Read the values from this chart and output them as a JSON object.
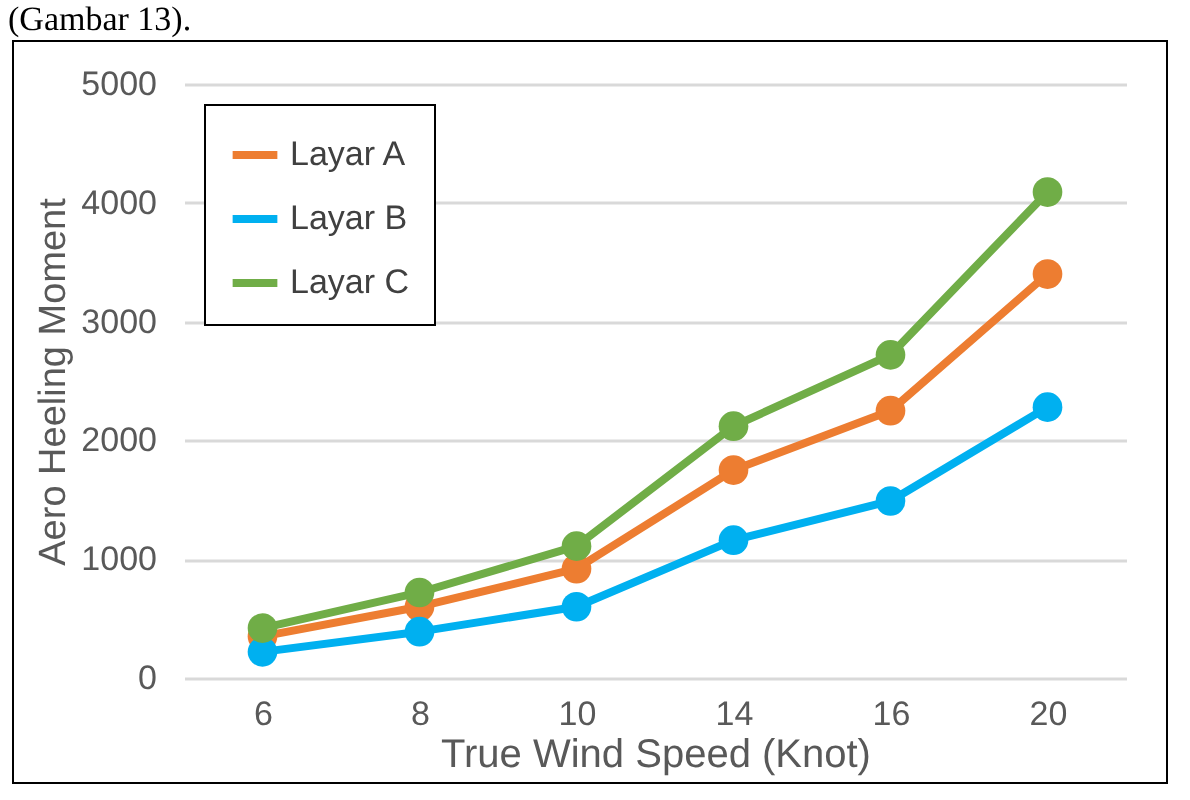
{
  "chart_data": {
    "type": "line",
    "xlabel": "True Wind Speed (Knot)",
    "ylabel": "Aero Heeling Moment",
    "annotations": [
      "(Gambar 13)."
    ],
    "categories": [
      "6",
      "8",
      "10",
      "14",
      "16",
      "20"
    ],
    "series": [
      {
        "name": "Layar A",
        "color": "#ed7d31",
        "values": [
          350,
          600,
          920,
          1750,
          2250,
          3400
        ]
      },
      {
        "name": "Layar B",
        "color": "#00b0f0",
        "values": [
          220,
          390,
          600,
          1160,
          1490,
          2280
        ]
      },
      {
        "name": "Layar C",
        "color": "#70ad47",
        "values": [
          420,
          720,
          1110,
          2120,
          2720,
          4090
        ]
      }
    ],
    "ylim": [
      0,
      5000
    ],
    "yticks": [
      0,
      1000,
      2000,
      3000,
      4000,
      5000
    ],
    "grid": "y",
    "legend": "top left",
    "marker": "circle",
    "line_style": "solid"
  }
}
